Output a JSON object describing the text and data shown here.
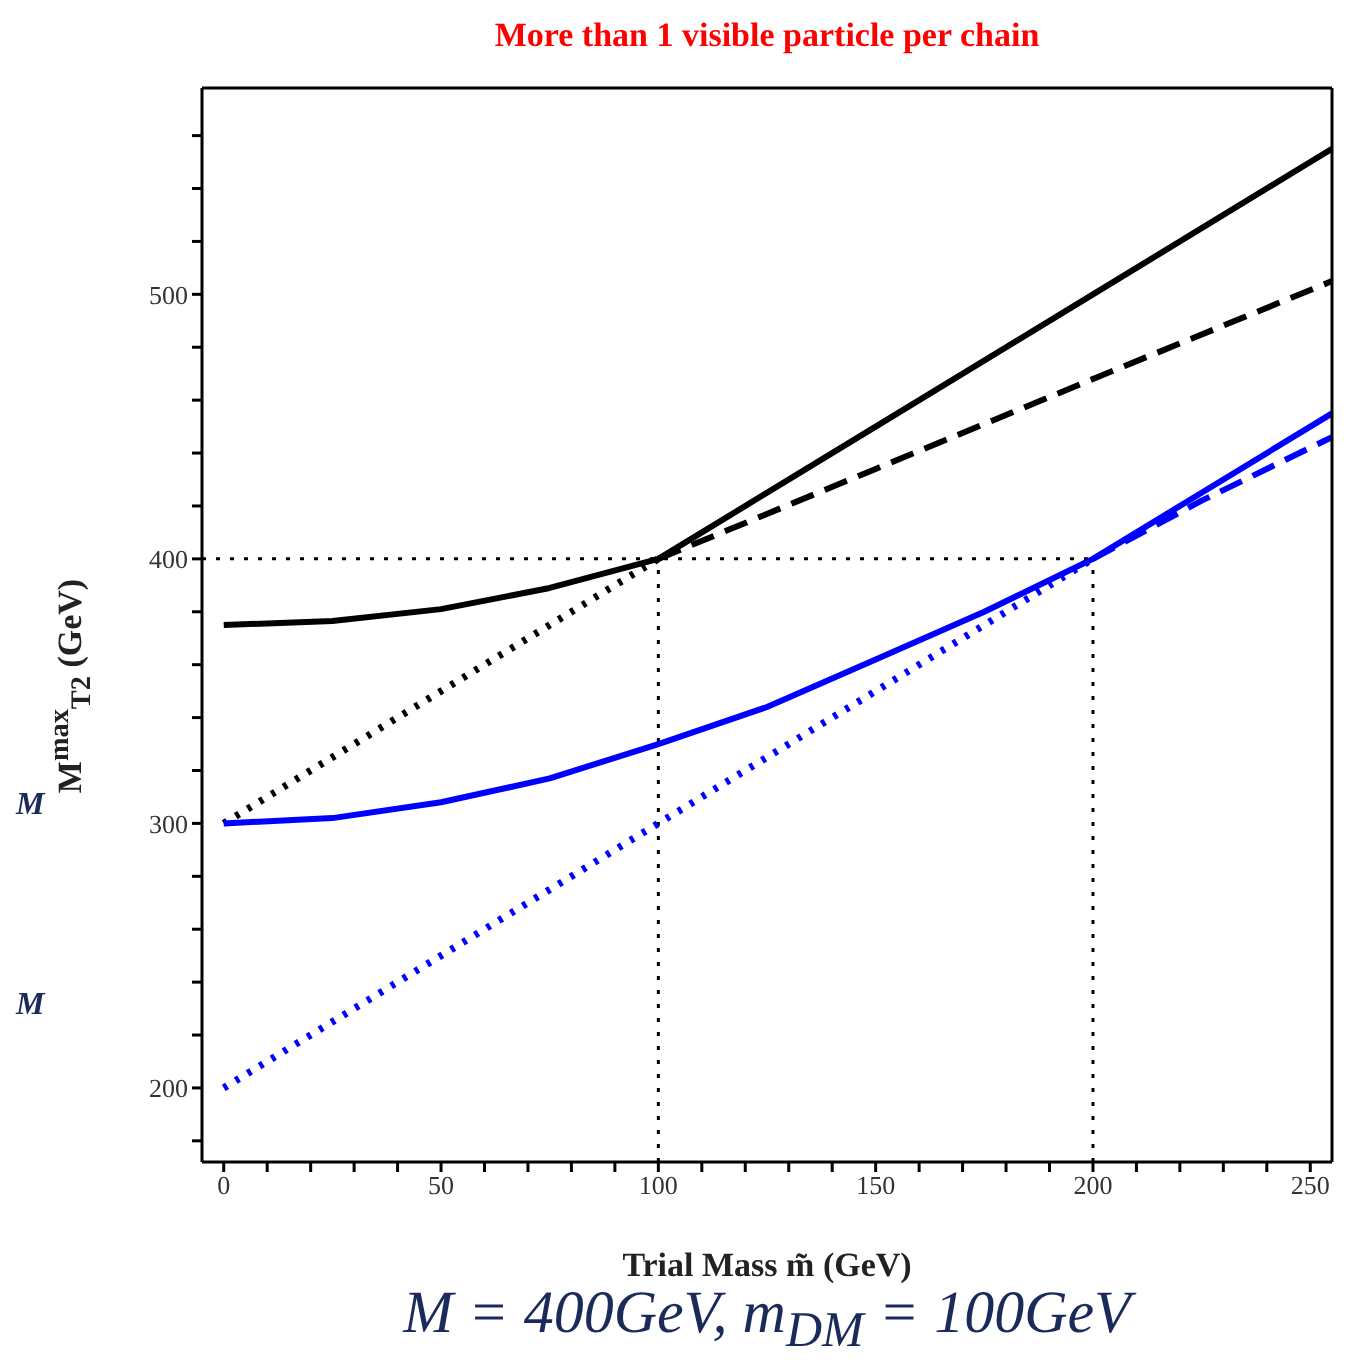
{
  "chart_data": {
    "type": "line",
    "title": "More than 1 visible particle per chain",
    "xlabel": "Trial Mass m̃ (GeV)",
    "ylabel": "M$^{max}$$_{T2}$ (GeV)",
    "annotations": [
      "M = 400GeV, m$_{DM}$ = 100GeV",
      "M",
      "M"
    ],
    "xlim": [
      -5,
      255
    ],
    "ylim": [
      172,
      578
    ],
    "xticks": [
      0,
      {
        "value": 10,
        "label": null
      },
      {
        "value": 20,
        "label": null
      },
      {
        "value": 30,
        "label": null
      },
      {
        "value": 40,
        "label": null
      },
      50,
      {
        "value": 60,
        "label": null
      },
      {
        "value": 70,
        "label": null
      },
      {
        "value": 80,
        "label": null
      },
      {
        "value": 90,
        "label": null
      },
      100,
      {
        "value": 110,
        "label": null
      },
      {
        "value": 120,
        "label": null
      },
      {
        "value": 130,
        "label": null
      },
      {
        "value": 140,
        "label": null
      },
      150,
      {
        "value": 160,
        "label": null
      },
      {
        "value": 170,
        "label": null
      },
      {
        "value": 180,
        "label": null
      },
      {
        "value": 190,
        "label": null
      },
      200,
      {
        "value": 210,
        "label": null
      },
      {
        "value": 220,
        "label": null
      },
      {
        "value": 230,
        "label": null
      },
      {
        "value": 240,
        "label": null
      },
      250
    ],
    "yticks": [
      {
        "value": 180,
        "label": null
      },
      200,
      {
        "value": 220,
        "label": null
      },
      {
        "value": 240,
        "label": null
      },
      {
        "value": 260,
        "label": null
      },
      {
        "value": 280,
        "label": null
      },
      300,
      {
        "value": 320,
        "label": null
      },
      {
        "value": 340,
        "label": null
      },
      {
        "value": 360,
        "label": null
      },
      {
        "value": 380,
        "label": null
      },
      400,
      {
        "value": 420,
        "label": null
      },
      {
        "value": 440,
        "label": null
      },
      {
        "value": 460,
        "label": null
      },
      {
        "value": 480,
        "label": null
      },
      500,
      {
        "value": 520,
        "label": null
      },
      {
        "value": 540,
        "label": null
      },
      {
        "value": 560,
        "label": null
      }
    ],
    "grid": false,
    "legend": false,
    "marker": "none",
    "ref_lines": [
      {
        "axis": "y",
        "value": 400,
        "color": "#000000",
        "line_style": "dotted"
      },
      {
        "axis": "x",
        "value": 100,
        "color": "#000000",
        "line_style": "dotted"
      },
      {
        "axis": "x",
        "value": 200,
        "color": "#000000",
        "line_style": "dotted"
      }
    ],
    "series": [
      {
        "color": "#000000",
        "line_style": "solid",
        "x": [
          0,
          25,
          50,
          75,
          100,
          150,
          200,
          255
        ],
        "values": [
          375,
          376.5,
          381,
          389,
          400,
          450,
          500,
          555
        ]
      },
      {
        "color": "#000000",
        "line_style": "dashed",
        "x": [
          100,
          150,
          200,
          255
        ],
        "values": [
          400,
          434,
          468,
          505
        ]
      },
      {
        "color": "#000000",
        "line_style": "dotted",
        "x": [
          0,
          100
        ],
        "values": [
          300,
          400
        ]
      },
      {
        "color": "#0000ff",
        "line_style": "solid",
        "x": [
          0,
          25,
          50,
          75,
          100,
          125,
          150,
          175,
          200,
          225,
          250,
          255
        ],
        "values": [
          300,
          302,
          308,
          317,
          330,
          344,
          362,
          380,
          400,
          425,
          450,
          455
        ]
      },
      {
        "color": "#0000ff",
        "line_style": "dashed",
        "x": [
          200,
          225,
          255
        ],
        "values": [
          400,
          422,
          446
        ]
      },
      {
        "color": "#0000ff",
        "line_style": "dotted",
        "x": [
          0,
          100,
          200
        ],
        "values": [
          200,
          300,
          400
        ]
      }
    ]
  }
}
